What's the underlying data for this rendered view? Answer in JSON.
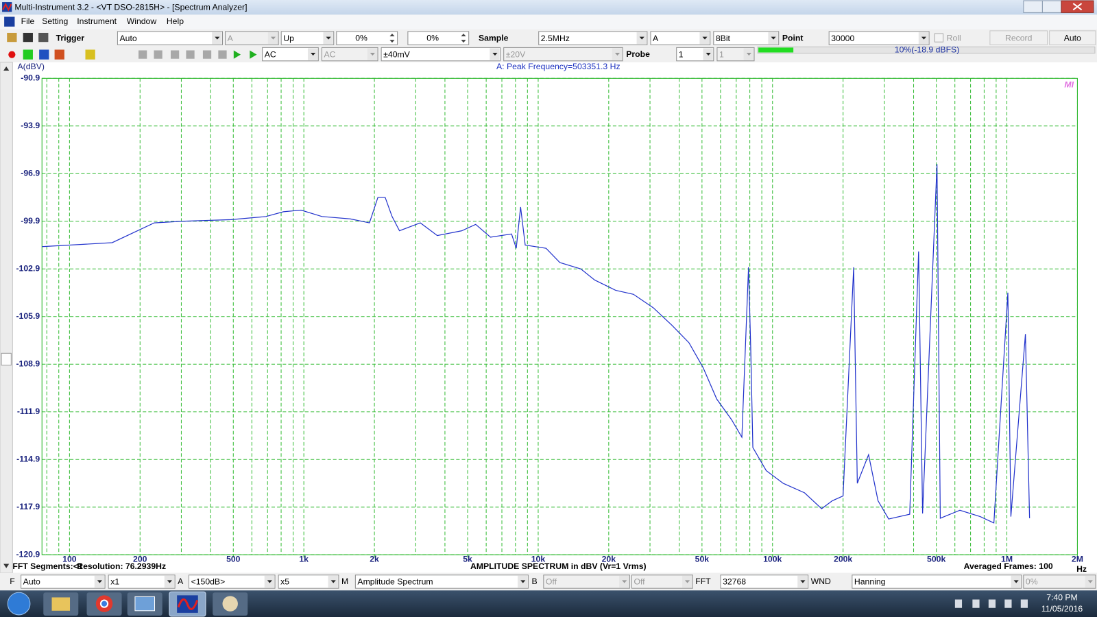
{
  "window": {
    "title": "Multi-Instrument 3.2   -   <VT DSO-2815H> - [Spectrum Analyzer]"
  },
  "menu": [
    "File",
    "Setting",
    "Instrument",
    "Window",
    "Help"
  ],
  "toolbar": {
    "trigger_label": "Trigger",
    "trigger_mode": "Auto",
    "trigger_channel": "A",
    "trigger_edge": "Up",
    "trigger_level": "0%",
    "trigger_delay": "0%",
    "sample_label": "Sample",
    "sample_rate": "2.5MHz",
    "channel": "A",
    "bits": "8Bit",
    "point_label": "Point",
    "points": "30000",
    "roll": "Roll",
    "record": "Record",
    "auto": "Auto"
  },
  "toolbar2": {
    "coupling_a": "AC",
    "coupling_b": "AC",
    "range_a": "±40mV",
    "range_b": "±20V",
    "probe_label": "Probe",
    "probe_a": "1",
    "probe_b": "1",
    "level": "10%(-18.9 dBFS)"
  },
  "chart_data": {
    "type": "line",
    "ylabel": "A(dBV)",
    "annotation": "A: Peak Frequency=503351.3 Hz",
    "watermark": "MI",
    "xlabel": "AMPLITUDE SPECTRUM in dBV (Vr=1 Vrms)",
    "x_unit": "Hz",
    "log_x": true,
    "grid": true,
    "color": "#2233cc",
    "xlim": [
      76.3,
      2000000
    ],
    "ylim": [
      -120.9,
      -90.9
    ],
    "yticks": [
      -90.9,
      -93.9,
      -96.9,
      -99.9,
      -102.9,
      -105.9,
      -108.9,
      -111.9,
      -114.9,
      -117.9,
      -120.9
    ],
    "xticks": [
      100,
      200,
      500,
      {
        "value": 1000,
        "label": "1k"
      },
      {
        "value": 2000,
        "label": "2k"
      },
      {
        "value": 5000,
        "label": "5k"
      },
      {
        "value": 10000,
        "label": "10k"
      },
      {
        "value": 20000,
        "label": "20k"
      },
      {
        "value": 50000,
        "label": "50k"
      },
      {
        "value": 100000,
        "label": "100k"
      },
      {
        "value": 200000,
        "label": "200k"
      },
      {
        "value": 500000,
        "label": "500k"
      },
      {
        "value": 1000000,
        "label": "1M"
      },
      {
        "value": 2000000,
        "label": "2M"
      }
    ],
    "xgrid": [
      80,
      90,
      100,
      200,
      300,
      400,
      500,
      600,
      700,
      800,
      900,
      1000,
      2000,
      3000,
      4000,
      5000,
      6000,
      7000,
      8000,
      9000,
      10000,
      20000,
      30000,
      40000,
      50000,
      60000,
      70000,
      80000,
      90000,
      100000,
      200000,
      300000,
      400000,
      500000,
      600000,
      700000,
      800000,
      900000,
      1000000,
      2000000
    ],
    "x": [
      76.3,
      152,
      230,
      302,
      489,
      689,
      818,
      973,
      1194,
      1575,
      1905,
      2070,
      2225,
      2380,
      2560,
      3140,
      3710,
      4720,
      5410,
      6260,
      7700,
      8060,
      8410,
      8800,
      10800,
      12370,
      15200,
      17420,
      21400,
      25500,
      31000,
      37200,
      44000,
      50500,
      57800,
      66900,
      74000,
      79000,
      80700,
      82400,
      94000,
      111000,
      137000,
      162000,
      180000,
      200000,
      222000,
      230000,
      257000,
      282000,
      313000,
      385000,
      420000,
      437000,
      503351.3,
      520000,
      630000,
      770000,
      880000,
      1010000,
      1040000,
      1200000,
      1250000
    ],
    "values": [
      -101.5,
      -101.25,
      -100.0,
      -99.9,
      -99.8,
      -99.6,
      -99.3,
      -99.2,
      -99.6,
      -99.75,
      -100.0,
      -98.4,
      -98.4,
      -99.6,
      -100.5,
      -100.0,
      -100.8,
      -100.5,
      -100.1,
      -100.9,
      -100.7,
      -101.6,
      -99.0,
      -101.4,
      -101.6,
      -102.5,
      -102.9,
      -103.6,
      -104.25,
      -104.5,
      -105.35,
      -106.45,
      -107.55,
      -109.1,
      -111.1,
      -112.4,
      -113.5,
      -102.8,
      -107.8,
      -114.15,
      -115.6,
      -116.4,
      -117.0,
      -118.0,
      -117.5,
      -117.2,
      -102.8,
      -116.4,
      -114.6,
      -117.5,
      -118.65,
      -118.35,
      -101.8,
      -118.3,
      -96.3,
      -118.6,
      -118.1,
      -118.5,
      -118.9,
      -104.4,
      -118.5,
      -107.0,
      -118.6
    ]
  },
  "footer": {
    "segments": "FFT Segments:<1",
    "resolution": "Resolution: 76.2939Hz",
    "averaged": "Averaged Frames: 100"
  },
  "controls": {
    "f_label": "F",
    "f_mode": "Auto",
    "f_scale": "x1",
    "a_label": "A",
    "a_range": "<150dB>",
    "a_scale": "x5",
    "m_label": "M",
    "m_mode": "Amplitude Spectrum",
    "b_label": "B",
    "b_mode": "Off",
    "b_mode2": "Off",
    "fft_label": "FFT",
    "fft_size": "32768",
    "wnd_label": "WND",
    "window": "Hanning",
    "overlap": "0%"
  },
  "taskbar": {
    "time": "7:40 PM",
    "date": "11/05/2016"
  }
}
